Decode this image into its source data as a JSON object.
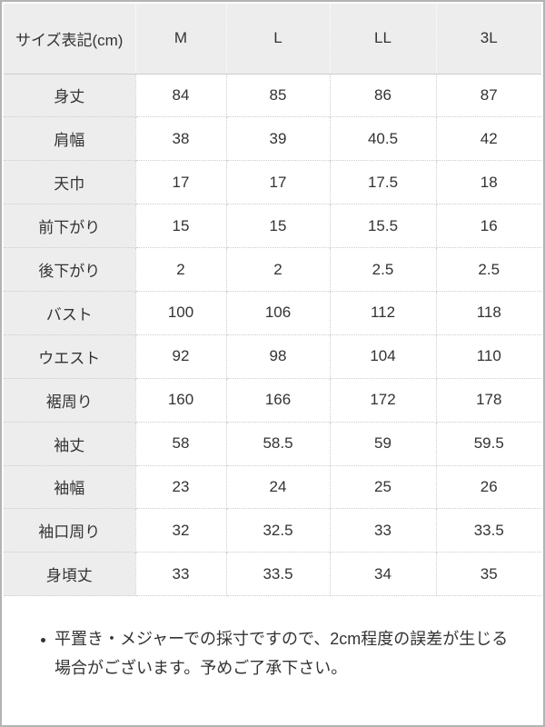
{
  "table": {
    "header": [
      "サイズ表記(cm)",
      "M",
      "L",
      "LL",
      "3L"
    ],
    "rows": [
      {
        "label": "身丈",
        "values": [
          "84",
          "85",
          "86",
          "87"
        ]
      },
      {
        "label": "肩幅",
        "values": [
          "38",
          "39",
          "40.5",
          "42"
        ]
      },
      {
        "label": "天巾",
        "values": [
          "17",
          "17",
          "17.5",
          "18"
        ]
      },
      {
        "label": "前下がり",
        "values": [
          "15",
          "15",
          "15.5",
          "16"
        ]
      },
      {
        "label": "後下がり",
        "values": [
          "2",
          "2",
          "2.5",
          "2.5"
        ]
      },
      {
        "label": "バスト",
        "values": [
          "100",
          "106",
          "112",
          "118"
        ]
      },
      {
        "label": "ウエスト",
        "values": [
          "92",
          "98",
          "104",
          "110"
        ]
      },
      {
        "label": "裾周り",
        "values": [
          "160",
          "166",
          "172",
          "178"
        ]
      },
      {
        "label": "袖丈",
        "values": [
          "58",
          "58.5",
          "59",
          "59.5"
        ]
      },
      {
        "label": "袖幅",
        "values": [
          "23",
          "24",
          "25",
          "26"
        ]
      },
      {
        "label": "袖口周り",
        "values": [
          "32",
          "32.5",
          "33",
          "33.5"
        ]
      },
      {
        "label": "身頃丈",
        "values": [
          "33",
          "33.5",
          "34",
          "35"
        ]
      }
    ]
  },
  "note": {
    "text": "平置き・メジャーでの採寸ですので、2cm程度の誤差が生じる場合がございます。予めご了承下さい。"
  },
  "colors": {
    "page_border": "#b3b3b3",
    "cell_bg": "#ededed",
    "divider": "#cccccc",
    "text": "#333333"
  }
}
